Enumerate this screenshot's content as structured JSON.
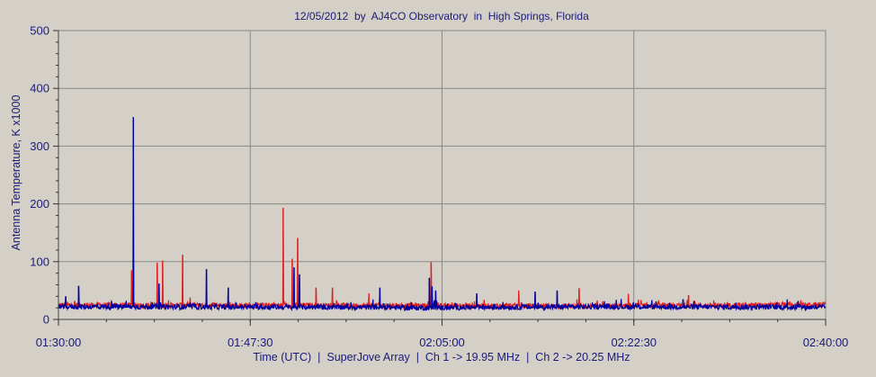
{
  "colors": {
    "background": "#d4d0c8",
    "plot_area": "#d4d0c8",
    "grid": "#888888",
    "axis_text": "#1a1a7a",
    "ch1": "#0000a0",
    "ch2": "#e02020"
  },
  "chart_data": {
    "type": "line",
    "title": "12/05/2012  by  AJ4CO Observatory  in  High Springs, Florida",
    "xlabel": "Time (UTC)  |  SuperJove Array  |  Ch 1 -> 19.95 MHz  |  Ch 2 -> 20.25 MHz",
    "ylabel": "Antenna Temperature, K x1000",
    "xlim": [
      "01:30:00",
      "02:40:00"
    ],
    "ylim": [
      0,
      500
    ],
    "x_ticks": [
      "01:30:00",
      "01:47:30",
      "02:05:00",
      "02:22:30",
      "02:40:00"
    ],
    "y_ticks": [
      0,
      100,
      200,
      300,
      400,
      500
    ],
    "grid": true,
    "baseline": {
      "ch1": [
        [
          0,
          22
        ],
        [
          30,
          21
        ],
        [
          32,
          20
        ],
        [
          50,
          22
        ],
        [
          70,
          21
        ]
      ],
      "ch2": [
        [
          0,
          25
        ],
        [
          30,
          24
        ],
        [
          32,
          24
        ],
        [
          50,
          23
        ],
        [
          70,
          25
        ]
      ]
    },
    "series": [
      {
        "name": "Ch 1 -> 19.95 MHz",
        "color_key": "ch1",
        "spikes": [
          [
            "01:30:40",
            40
          ],
          [
            "01:31:50",
            58
          ],
          [
            "01:36:50",
            350
          ],
          [
            "01:39:10",
            62
          ],
          [
            "01:43:30",
            87
          ],
          [
            "01:45:30",
            55
          ],
          [
            "01:51:30",
            90
          ],
          [
            "01:52:00",
            78
          ],
          [
            "01:59:20",
            55
          ],
          [
            "02:03:50",
            72
          ],
          [
            "02:04:05",
            57
          ],
          [
            "02:04:25",
            50
          ],
          [
            "02:08:10",
            45
          ],
          [
            "02:13:30",
            48
          ],
          [
            "02:15:30",
            50
          ],
          [
            "02:27:00",
            35
          ],
          [
            "02:37:30",
            32
          ]
        ]
      },
      {
        "name": "Ch 2 -> 20.25 MHz",
        "color_key": "ch2",
        "spikes": [
          [
            "01:36:40",
            85
          ],
          [
            "01:39:00",
            98
          ],
          [
            "01:39:30",
            102
          ],
          [
            "01:41:20",
            112
          ],
          [
            "01:50:30",
            193
          ],
          [
            "01:51:20",
            105
          ],
          [
            "01:51:50",
            141
          ],
          [
            "01:53:30",
            55
          ],
          [
            "01:55:00",
            55
          ],
          [
            "01:58:20",
            45
          ],
          [
            "02:04:00",
            99
          ],
          [
            "02:12:00",
            50
          ],
          [
            "02:17:30",
            54
          ],
          [
            "02:22:00",
            44
          ],
          [
            "02:27:30",
            42
          ]
        ]
      }
    ]
  }
}
